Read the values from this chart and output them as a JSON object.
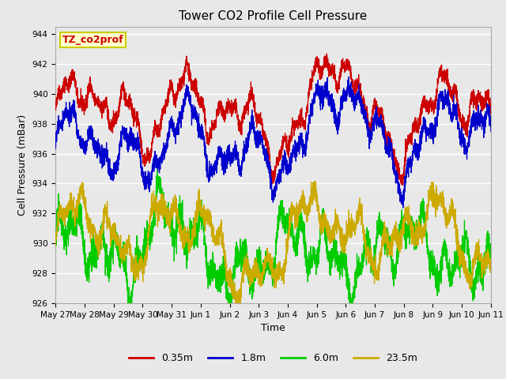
{
  "title": "Tower CO2 Profile Cell Pressure",
  "xlabel": "Time",
  "ylabel": "Cell Pressure (mBar)",
  "ylim": [
    926,
    944.5
  ],
  "yticks": [
    926,
    928,
    930,
    932,
    934,
    936,
    938,
    940,
    942,
    944
  ],
  "annotation_text": "TZ_co2prof",
  "annotation_color": "#cc0000",
  "annotation_box_facecolor": "#ffffcc",
  "annotation_box_edgecolor": "#cccc00",
  "series_colors": [
    "#cc0000",
    "#0000cc",
    "#00cc00",
    "#ccaa00"
  ],
  "series_labels": [
    "0.35m",
    "1.8m",
    "6.0m",
    "23.5m"
  ],
  "series_linewidth": 0.9,
  "background_color": "#e8e8e8",
  "plot_bg_color": "#e8e8e8",
  "grid_color": "#ffffff",
  "n_points": 3600,
  "x_start": 0,
  "x_end": 15,
  "x_tick_labels": [
    "May 27",
    "May 28",
    "May 29",
    "May 30",
    "May 31",
    "Jun 1",
    "Jun 2",
    "Jun 3",
    "Jun 4",
    "Jun 5",
    "Jun 6",
    "Jun 7",
    "Jun 8",
    "Jun 9",
    "Jun 10",
    "Jun 11"
  ],
  "x_tick_positions": [
    0,
    1,
    2,
    3,
    4,
    5,
    6,
    7,
    8,
    9,
    10,
    11,
    12,
    13,
    14,
    15
  ],
  "title_fontsize": 11,
  "axis_label_fontsize": 9,
  "tick_label_fontsize": 7.5,
  "legend_fontsize": 9,
  "figwidth": 6.4,
  "figheight": 4.8,
  "dpi": 100
}
